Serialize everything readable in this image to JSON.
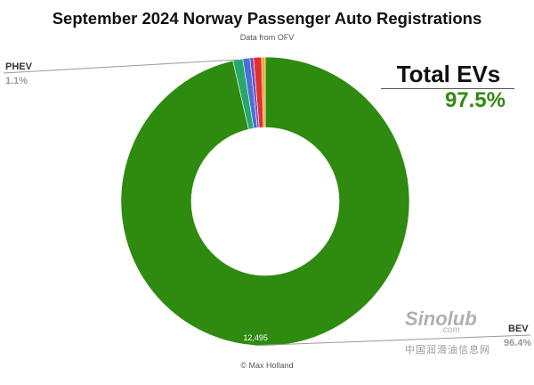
{
  "title": "September 2024 Norway Passenger Auto Registrations",
  "subtitle": "Data from OFV",
  "credit": "© Max Holland",
  "total": {
    "label": "Total EVs",
    "value": "97.5%",
    "color": "#2e8b10"
  },
  "watermark": {
    "logo": "Sinolub",
    "domain": ".com",
    "text": "中国润滑油信息网"
  },
  "chart_data": {
    "type": "pie",
    "style": "donut",
    "start_angle_deg": 0,
    "direction": "clockwise",
    "slices": [
      {
        "label": "BEV",
        "percent": 96.4,
        "value": 12495,
        "color": "#2e8b10"
      },
      {
        "label": "PHEV",
        "percent": 1.1,
        "color": "#27a86b"
      },
      {
        "label": "",
        "percent": 0.8,
        "color": "#4a6fd6"
      },
      {
        "label": "",
        "percent": 0.4,
        "color": "#7b48c4"
      },
      {
        "label": "",
        "percent": 0.9,
        "color": "#e0322d"
      },
      {
        "label": "",
        "percent": 0.4,
        "color": "#f5a623"
      }
    ],
    "labels": [
      {
        "name": "PHEV",
        "value_text": "1.1%"
      },
      {
        "name": "BEV",
        "value_text": "96.4%"
      }
    ],
    "data_label": "12,495"
  }
}
